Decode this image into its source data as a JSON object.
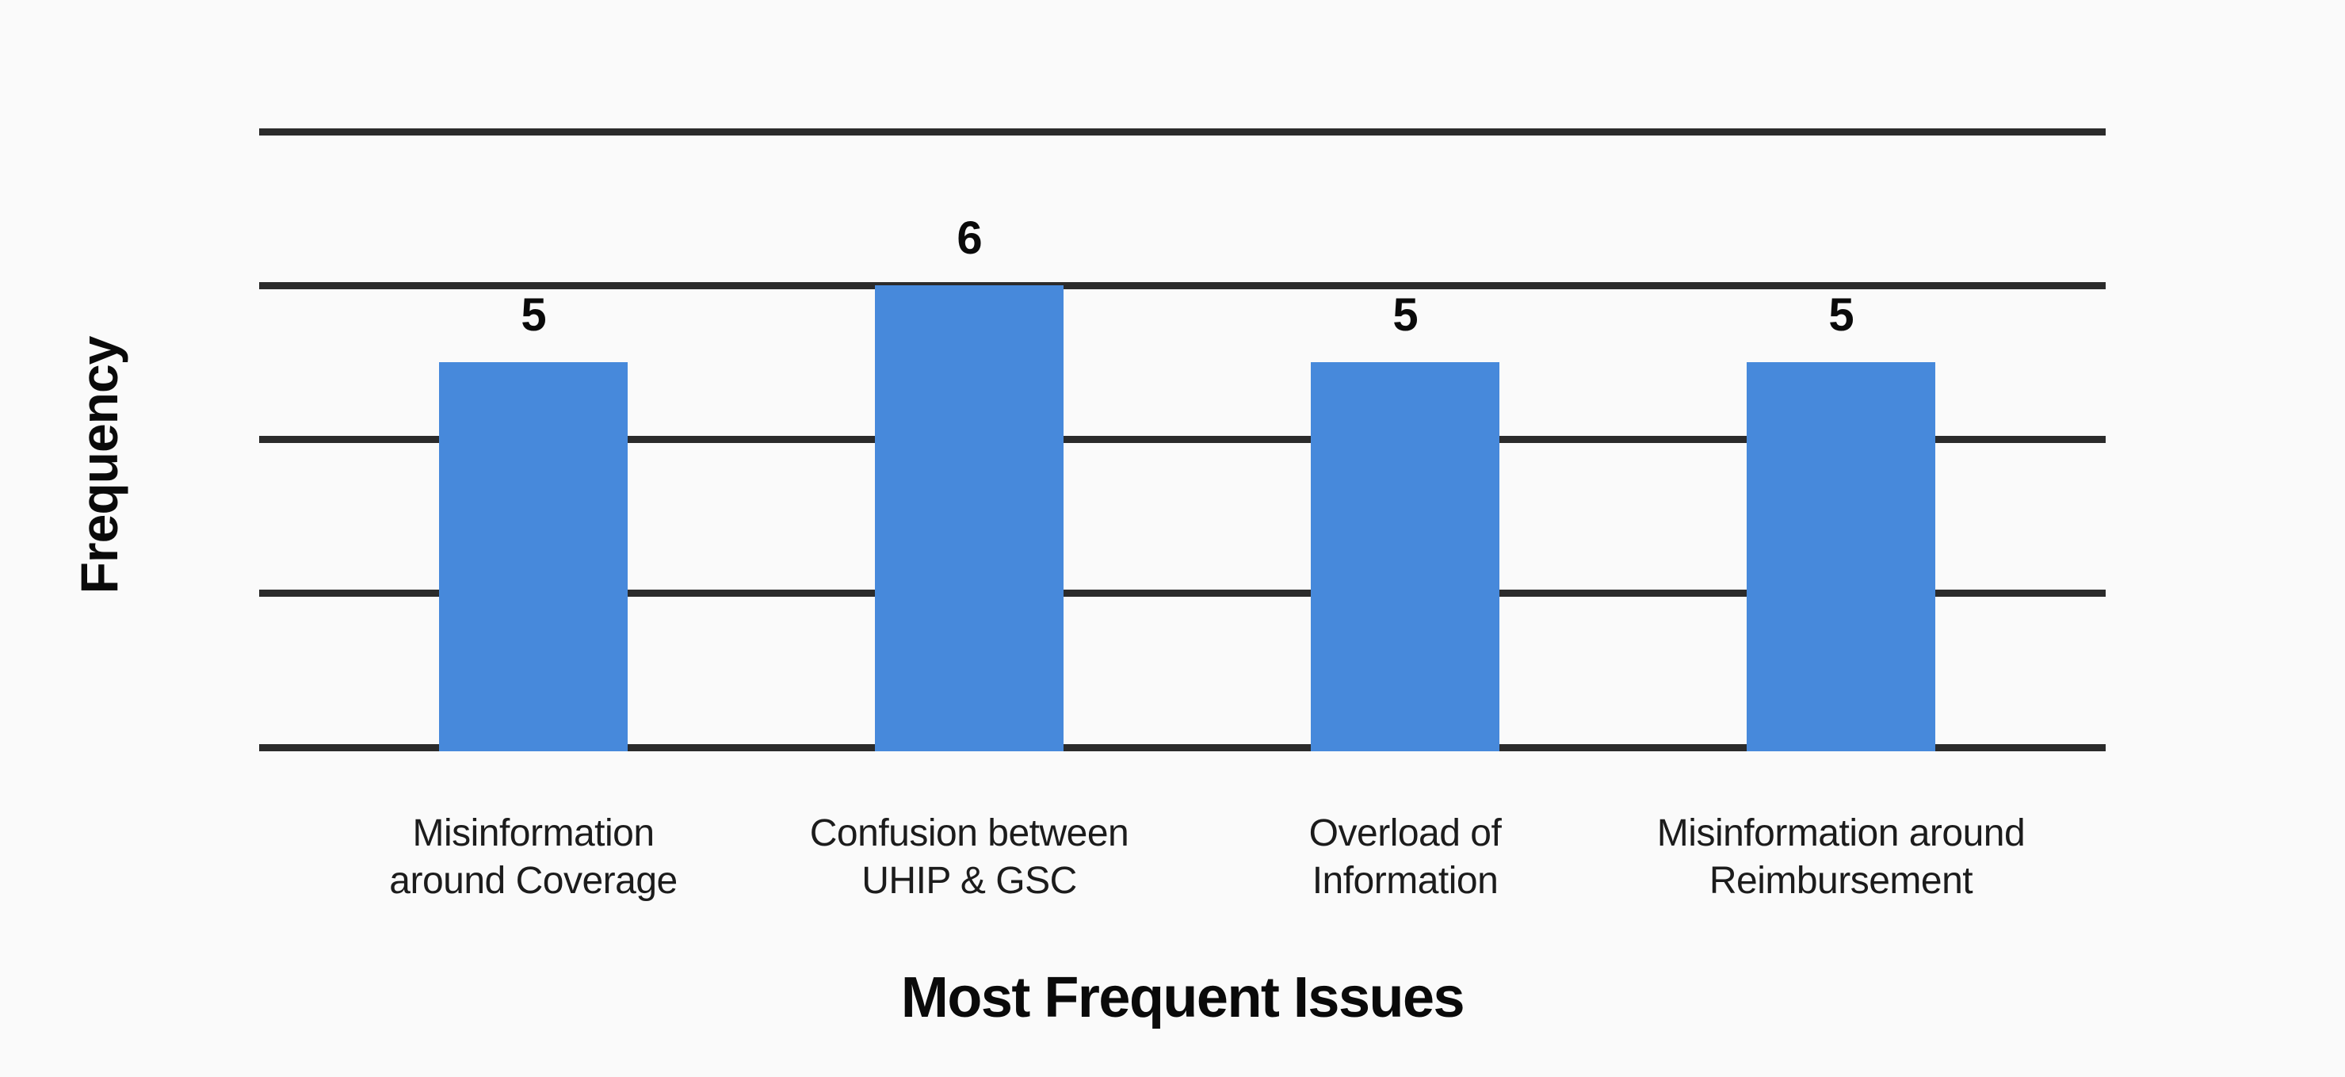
{
  "chart_data": {
    "type": "bar",
    "title": "",
    "xlabel": "Most Frequent Issues",
    "ylabel": "Frequency",
    "categories": [
      "Misinformation around Coverage",
      "Confusion between UHIP & GSC",
      "Overload of Information",
      "Misinformation around Reimbursement"
    ],
    "category_lines": [
      [
        "Misinformation",
        "around Coverage"
      ],
      [
        "Confusion between",
        "UHIP & GSC"
      ],
      [
        "Overload of",
        "Information"
      ],
      [
        "Misinformation around",
        "Reimbursement"
      ]
    ],
    "values": [
      5,
      6,
      5,
      5
    ],
    "value_labels": [
      "5",
      "6",
      "5",
      "5"
    ],
    "ylim": [
      0,
      8
    ],
    "gridline_values": [
      0,
      2,
      4,
      6,
      8
    ],
    "y_tick_labels_shown": false,
    "grid": "horizontal-only",
    "legend": "none",
    "colors": {
      "bar": "#4789db",
      "background": "#fafafa",
      "gridline": "#2b2b2b",
      "value_text": "#0a0a0a",
      "category_text": "#1c1c1c"
    }
  }
}
